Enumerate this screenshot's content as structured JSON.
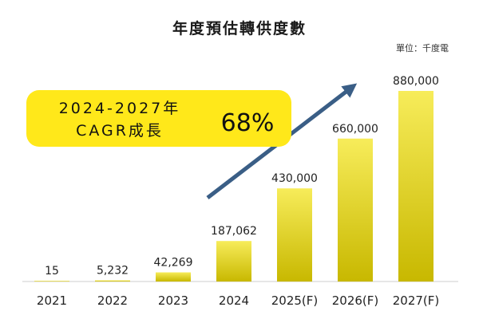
{
  "chart_data": {
    "type": "bar",
    "title": "年度預估轉供度數",
    "unit_label": "單位：千度電",
    "categories": [
      "2021",
      "2022",
      "2023",
      "2024",
      "2025(F)",
      "2026(F)",
      "2027(F)"
    ],
    "values": [
      15,
      5232,
      42269,
      187062,
      430000,
      660000,
      880000
    ],
    "data_labels": [
      "15",
      "5,232",
      "42,269",
      "187,062",
      "430,000",
      "660,000",
      "880,000"
    ],
    "xlabel": "",
    "ylabel": "",
    "ylim": [
      0,
      880000
    ],
    "grid": false,
    "colors": {
      "bar_light": "#f7ec5a",
      "bar_dark": "#c8b800",
      "callout_fill": "#ffe81a",
      "arrow": "#3a5e86",
      "baseline": "#cccccc"
    },
    "annotation": {
      "line1": "2024-2027年",
      "line2": "CAGR成長",
      "value": "68%"
    }
  }
}
